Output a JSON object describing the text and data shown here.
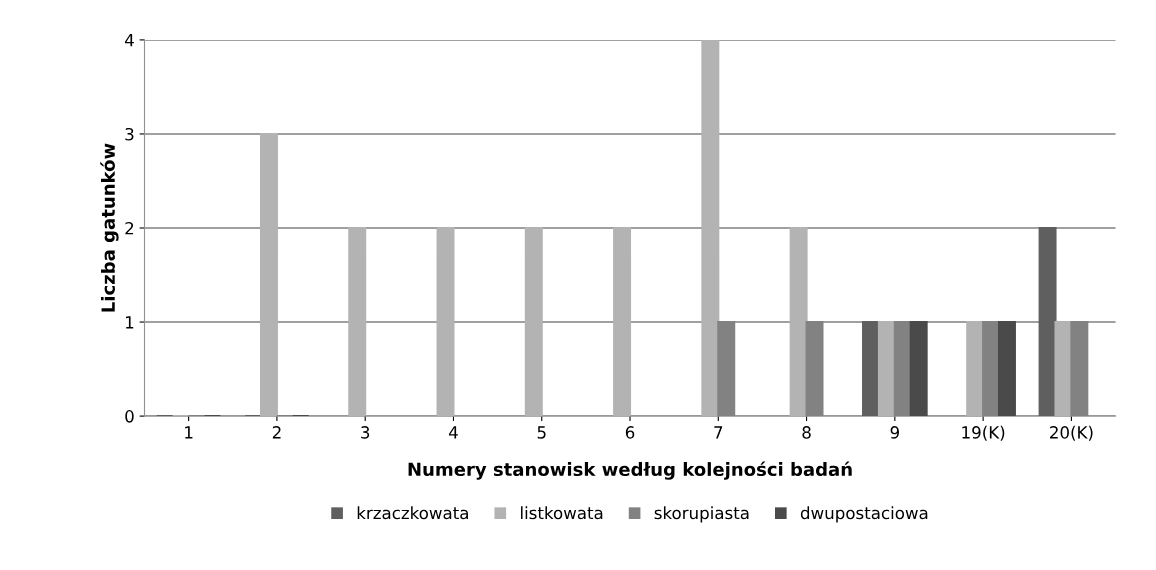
{
  "chart_data": {
    "type": "bar",
    "xlabel": "Numery stanowisk według kolejności badań",
    "ylabel": "Liczba gatunków",
    "categories": [
      "1",
      "2",
      "3",
      "4",
      "5",
      "6",
      "7",
      "8",
      "9",
      "19(K)",
      "20(K)"
    ],
    "series": [
      {
        "name": "krzaczkowata",
        "color": "#5f5f5f",
        "values": [
          0,
          0,
          null,
          null,
          null,
          null,
          null,
          null,
          1,
          null,
          2
        ]
      },
      {
        "name": "listkowata",
        "color": "#b3b3b3",
        "values": [
          0,
          3,
          2,
          2,
          2,
          2,
          4,
          2,
          1,
          1,
          1
        ]
      },
      {
        "name": "skorupiasta",
        "color": "#828282",
        "values": [
          0,
          0,
          null,
          null,
          null,
          null,
          1,
          1,
          1,
          1,
          1
        ]
      },
      {
        "name": "dwupostaciowa",
        "color": "#4a4a4a",
        "values": [
          0,
          0,
          null,
          null,
          null,
          null,
          null,
          null,
          1,
          1,
          null
        ]
      }
    ],
    "ylim": [
      0,
      4
    ],
    "yticks": [
      0,
      1,
      2,
      3,
      4
    ],
    "grid": "y",
    "legend": "bottom"
  }
}
